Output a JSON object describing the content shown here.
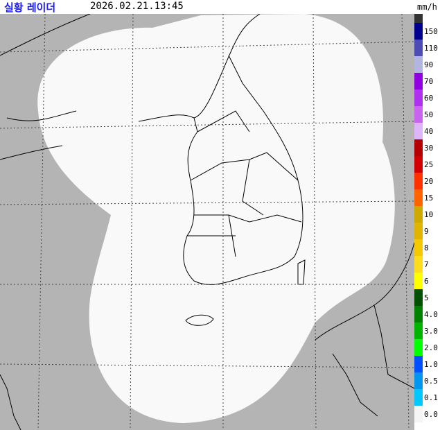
{
  "header": {
    "title": "실황 레이더",
    "timestamp": "2026.02.21.13:45",
    "unit": "mm/h"
  },
  "map": {
    "background_color": "#b4b4b4",
    "coverage_color": "#f9f9f9",
    "coastline_color": "#000000"
  },
  "legend": {
    "labels": [
      "150",
      "110",
      "90",
      "70",
      "60",
      "50",
      "40",
      "30",
      "25",
      "20",
      "15",
      "10",
      "9",
      "8",
      "7",
      "6",
      "5",
      "4.0",
      "3.0",
      "2.0",
      "1.0",
      "0.5",
      "0.1",
      "0.0"
    ],
    "colors": [
      "#333333",
      "#000090",
      "#4c4cb4",
      "#b4b4e0",
      "#9000e0",
      "#b030f0",
      "#c864f0",
      "#e0b4fa",
      "#b40000",
      "#d20000",
      "#ff3200",
      "#ff6400",
      "#ccaa00",
      "#e0b400",
      "#f5c800",
      "#ffdc1e",
      "#ffff00",
      "#005000",
      "#008200",
      "#00b400",
      "#00ff00",
      "#0050ff",
      "#0096f0",
      "#00c8ff",
      "#f5f5f5"
    ]
  }
}
